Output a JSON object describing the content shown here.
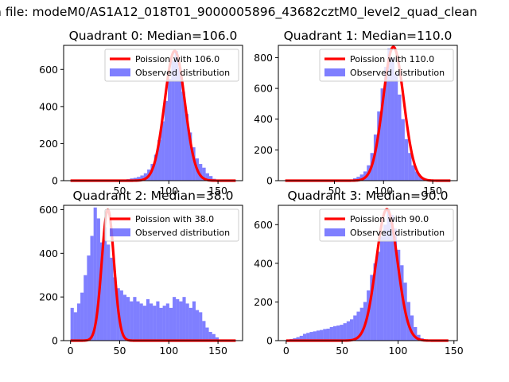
{
  "figure": {
    "suptitle": "n file: modeM0/AS1A12_018T01_9000005896_43682cztM0_level2_quad_clean"
  },
  "chart_data": [
    {
      "type": "bar",
      "title": "Quadrant 0: Median=106.0",
      "xlim": [
        -7,
        175
      ],
      "ylim": [
        0,
        730
      ],
      "xticks": [
        50,
        100,
        150
      ],
      "yticks": [
        0,
        200,
        400,
        600
      ],
      "legend": {
        "placement": "top-right",
        "entries": [
          "Poission with 106.0",
          "Observed distribution"
        ]
      },
      "hist": {
        "start": 50,
        "width": 3.5,
        "values": [
          3,
          5,
          8,
          12,
          15,
          20,
          28,
          40,
          60,
          90,
          140,
          220,
          320,
          430,
          550,
          650,
          700,
          610,
          480,
          360,
          260,
          180,
          120,
          90,
          70,
          40,
          25,
          10
        ]
      },
      "curve": {
        "mean": 106.0,
        "peak": 700,
        "sigma": 10.3,
        "xmin": 0,
        "xmax": 168
      }
    },
    {
      "type": "bar",
      "title": "Quadrant 1: Median=110.0",
      "xlim": [
        -7,
        175
      ],
      "ylim": [
        0,
        880
      ],
      "xticks": [
        50,
        100,
        150
      ],
      "yticks": [
        0,
        200,
        400,
        600,
        800
      ],
      "legend": {
        "placement": "top-right",
        "entries": [
          "Poission with 110.0",
          "Observed distribution"
        ]
      },
      "hist": {
        "start": 62,
        "width": 3.5,
        "values": [
          3,
          8,
          15,
          25,
          40,
          60,
          100,
          180,
          300,
          450,
          600,
          740,
          860,
          800,
          700,
          560,
          400,
          270,
          180,
          100,
          60,
          30,
          18,
          10,
          5
        ]
      },
      "curve": {
        "mean": 110.0,
        "peak": 870,
        "sigma": 10.5,
        "xmin": 0,
        "xmax": 168
      }
    },
    {
      "type": "bar",
      "title": "Quadrant 2: Median=38.0",
      "xlim": [
        -7,
        175
      ],
      "ylim": [
        0,
        620
      ],
      "xticks": [
        0,
        50,
        100,
        150
      ],
      "yticks": [
        0,
        200,
        400,
        600
      ],
      "legend": {
        "placement": "top-right",
        "entries": [
          "Poission with 38.0",
          "Observed distribution"
        ]
      },
      "hist": {
        "start": 0,
        "width": 3.35,
        "values": [
          150,
          130,
          170,
          220,
          300,
          390,
          480,
          610,
          560,
          450,
          520,
          440,
          380,
          290,
          240,
          230,
          210,
          200,
          180,
          200,
          180,
          170,
          160,
          190,
          170,
          160,
          180,
          150,
          160,
          170,
          150,
          200,
          190,
          180,
          200,
          170,
          150,
          180,
          140,
          130,
          90,
          60,
          40,
          30,
          15,
          5,
          3,
          2,
          2,
          1
        ]
      },
      "curve": {
        "mean": 38.0,
        "peak": 600,
        "sigma": 6.2,
        "xmin": 0,
        "xmax": 168
      }
    },
    {
      "type": "bar",
      "title": "Quadrant 3: Median=90.0",
      "xlim": [
        -7,
        153
      ],
      "ylim": [
        0,
        700
      ],
      "xticks": [
        0,
        50,
        100,
        150
      ],
      "yticks": [
        0,
        200,
        400,
        600
      ],
      "legend": {
        "placement": "top-right",
        "entries": [
          "Poission with 90.0",
          "Observed distribution"
        ]
      },
      "hist": {
        "start": 0,
        "width": 3.0,
        "values": [
          5,
          8,
          12,
          18,
          25,
          35,
          40,
          45,
          48,
          52,
          55,
          60,
          62,
          70,
          75,
          78,
          82,
          90,
          100,
          110,
          130,
          150,
          170,
          200,
          260,
          340,
          400,
          460,
          540,
          600,
          680,
          650,
          580,
          470,
          390,
          300,
          200,
          130,
          70,
          30,
          12,
          5
        ]
      },
      "curve": {
        "mean": 90.0,
        "peak": 680,
        "sigma": 9.5,
        "xmin": 0,
        "xmax": 145
      }
    }
  ]
}
